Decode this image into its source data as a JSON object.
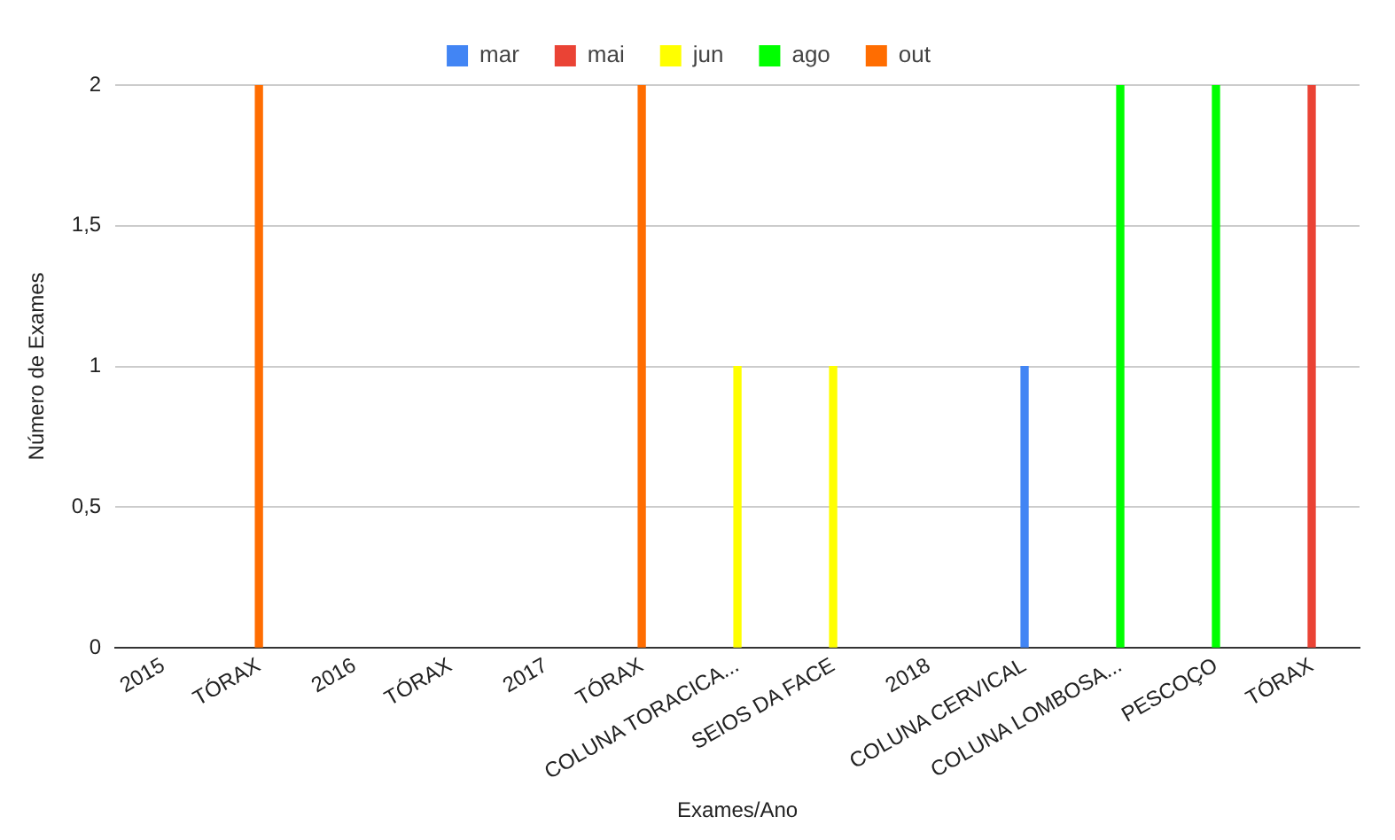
{
  "chart_data": {
    "type": "bar",
    "xlabel": "Exames/Ano",
    "ylabel": "Número de Exames",
    "categories": [
      "2015",
      "TÓRAX",
      "2016",
      "TÓRAX",
      "2017",
      "TÓRAX",
      "COLUNA TORACICA...",
      "SEIOS DA FACE",
      "2018",
      "COLUNA CERVICAL",
      "COLUNA LOMBOSA...",
      "PESCOÇO",
      "TÓRAX"
    ],
    "series": [
      {
        "name": "mar",
        "color": "#4285f4",
        "values": [
          null,
          null,
          null,
          null,
          null,
          null,
          null,
          null,
          null,
          1,
          null,
          null,
          null
        ]
      },
      {
        "name": "mai",
        "color": "#ea4335",
        "values": [
          null,
          null,
          null,
          null,
          null,
          null,
          null,
          null,
          null,
          null,
          null,
          null,
          2
        ]
      },
      {
        "name": "jun",
        "color": "#ffff00",
        "values": [
          null,
          null,
          null,
          null,
          null,
          null,
          1,
          1,
          null,
          null,
          null,
          null,
          null
        ]
      },
      {
        "name": "ago",
        "color": "#00ff00",
        "values": [
          null,
          null,
          null,
          null,
          null,
          null,
          null,
          null,
          null,
          null,
          2,
          2,
          null
        ]
      },
      {
        "name": "out",
        "color": "#ff6d01",
        "values": [
          null,
          2,
          null,
          null,
          null,
          2,
          null,
          null,
          null,
          null,
          null,
          null,
          null
        ]
      }
    ],
    "ylim": [
      0,
      2
    ],
    "yticks": [
      0,
      {
        "value": 0.5,
        "label": "0,5"
      },
      1,
      {
        "value": 1.5,
        "label": "1,5"
      },
      2
    ],
    "grid": "y",
    "legend": "top"
  }
}
